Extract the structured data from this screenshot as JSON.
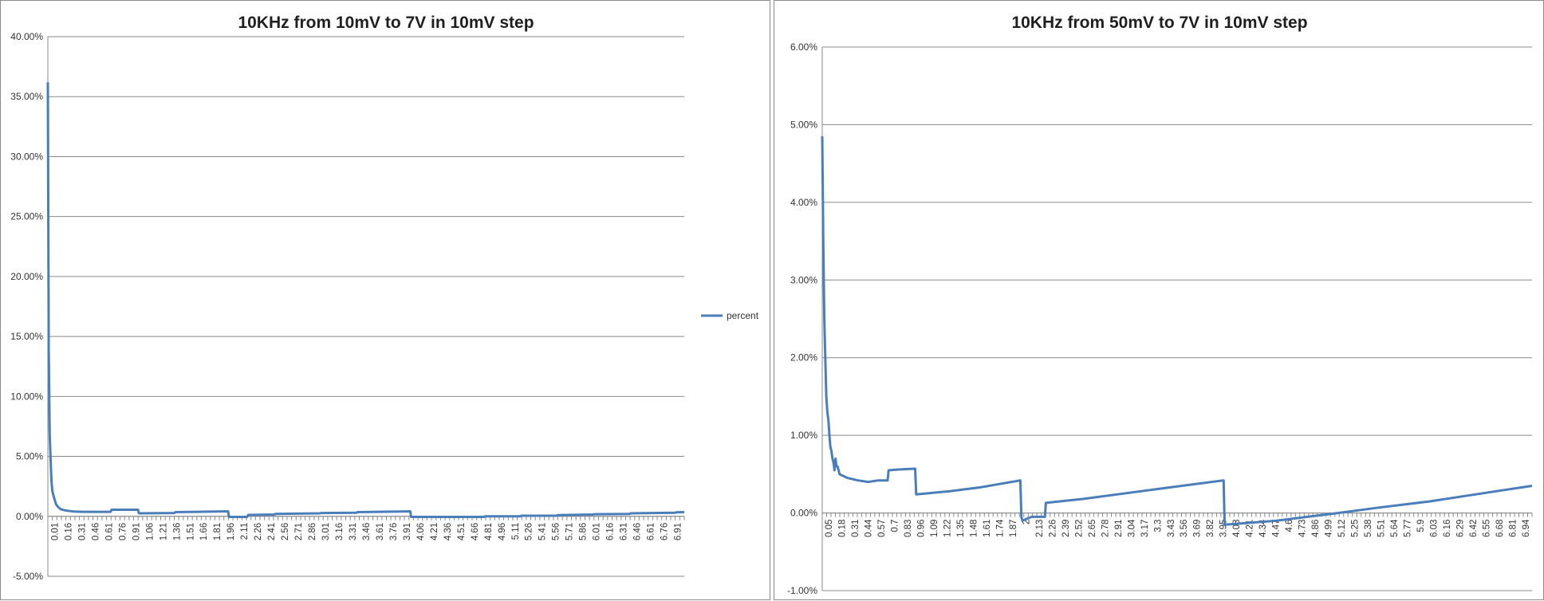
{
  "chart_data": [
    {
      "type": "line",
      "title": "10KHz from 10mV to 7V in 10mV step",
      "xlabel": "",
      "ylabel": "",
      "ylim": [
        -5.0,
        40.0
      ],
      "yticks": [
        "-5.00%",
        "0.00%",
        "5.00%",
        "10.00%",
        "15.00%",
        "20.00%",
        "25.00%",
        "30.00%",
        "35.00%",
        "40.00%"
      ],
      "ytick_values": [
        -5,
        0,
        5,
        10,
        15,
        20,
        25,
        30,
        35,
        40
      ],
      "xticks": [
        "0.01",
        "0.16",
        "0.31",
        "0.46",
        "0.61",
        "0.76",
        "0.91",
        "1.06",
        "1.21",
        "1.36",
        "1.51",
        "1.66",
        "1.81",
        "1.96",
        "2.11",
        "2.26",
        "2.41",
        "2.56",
        "2.71",
        "2.86",
        "3.01",
        "3.16",
        "3.31",
        "3.46",
        "3.61",
        "3.76",
        "3.91",
        "4.06",
        "4.21",
        "4.36",
        "4.51",
        "4.66",
        "4.81",
        "4.96",
        "5.11",
        "5.26",
        "5.41",
        "5.56",
        "5.71",
        "5.86",
        "6.01",
        "6.16",
        "6.31",
        "6.46",
        "6.61",
        "6.76",
        "6.91"
      ],
      "xlim": [
        0.01,
        7.0
      ],
      "grid": true,
      "legend": "right",
      "series": [
        {
          "name": "percent",
          "color": "#4a7ebb",
          "x": [
            0.01,
            0.02,
            0.03,
            0.04,
            0.05,
            0.06,
            0.08,
            0.1,
            0.12,
            0.15,
            0.2,
            0.3,
            0.4,
            0.7,
            0.71,
            1.0,
            1.01,
            1.4,
            1.41,
            1.99,
            2.0,
            2.2,
            2.21,
            2.5,
            2.51,
            3.0,
            3.01,
            3.4,
            3.41,
            3.99,
            4.0,
            4.8,
            4.81,
            5.2,
            5.21,
            5.6,
            5.61,
            6.0,
            6.01,
            6.4,
            6.41,
            6.9,
            6.91,
            7.0
          ],
          "values": [
            36.2,
            14.0,
            6.9,
            4.8,
            2.9,
            2.1,
            1.5,
            1.0,
            0.8,
            0.6,
            0.5,
            0.4,
            0.38,
            0.38,
            0.55,
            0.55,
            0.25,
            0.28,
            0.35,
            0.42,
            -0.05,
            -0.05,
            0.12,
            0.15,
            0.2,
            0.25,
            0.28,
            0.3,
            0.35,
            0.42,
            -0.05,
            -0.05,
            0.0,
            0.0,
            0.05,
            0.05,
            0.1,
            0.15,
            0.18,
            0.2,
            0.25,
            0.3,
            0.33,
            0.35
          ]
        }
      ]
    },
    {
      "type": "line",
      "title": "10KHz from 50mV to 7V in 10mV step",
      "xlabel": "",
      "ylabel": "",
      "ylim": [
        -1.0,
        6.0
      ],
      "yticks": [
        "-1.00%",
        "0.00%",
        "1.00%",
        "2.00%",
        "3.00%",
        "4.00%",
        "5.00%",
        "6.00%"
      ],
      "ytick_values": [
        -1,
        0,
        1,
        2,
        3,
        4,
        5,
        6
      ],
      "xticks": [
        "0.05",
        "0.18",
        "0.31",
        "0.44",
        "0.57",
        "0.7",
        "0.83",
        "0.96",
        "1.09",
        "1.22",
        "1.35",
        "1.48",
        "1.61",
        "1.74",
        "1.87",
        "2",
        "2.13",
        "2.26",
        "2.39",
        "2.52",
        "2.65",
        "2.78",
        "2.91",
        "3.04",
        "3.17",
        "3.3",
        "3.43",
        "3.56",
        "3.69",
        "3.82",
        "3.95",
        "4.08",
        "4.21",
        "4.34",
        "4.47",
        "4.6",
        "4.73",
        "4.86",
        "4.99",
        "5.12",
        "5.25",
        "5.38",
        "5.51",
        "5.64",
        "5.77",
        "5.9",
        "6.03",
        "6.16",
        "6.29",
        "6.42",
        "6.55",
        "6.68",
        "6.81",
        "6.94"
      ],
      "xlim": [
        0.05,
        7.0
      ],
      "grid": true,
      "legend": "none",
      "series": [
        {
          "name": "",
          "color": "#4a7ebb",
          "x": [
            0.05,
            0.06,
            0.07,
            0.08,
            0.09,
            0.1,
            0.11,
            0.12,
            0.13,
            0.14,
            0.15,
            0.16,
            0.17,
            0.18,
            0.19,
            0.2,
            0.21,
            0.22,
            0.25,
            0.3,
            0.4,
            0.5,
            0.6,
            0.69,
            0.7,
            0.8,
            0.96,
            0.97,
            1.3,
            1.6,
            1.99,
            2.0,
            2.01,
            2.1,
            2.23,
            2.24,
            2.6,
            3.0,
            3.4,
            3.98,
            3.99,
            4.2,
            4.5,
            4.8,
            5.1,
            5.5,
            6.0,
            6.5,
            7.0
          ],
          "values": [
            4.85,
            3.5,
            2.5,
            2.0,
            1.5,
            1.3,
            1.2,
            1.0,
            0.85,
            0.8,
            0.7,
            0.65,
            0.55,
            0.7,
            0.6,
            0.6,
            0.55,
            0.5,
            0.48,
            0.45,
            0.42,
            0.4,
            0.42,
            0.42,
            0.55,
            0.56,
            0.57,
            0.24,
            0.28,
            0.33,
            0.42,
            -0.05,
            -0.1,
            -0.05,
            -0.05,
            0.13,
            0.18,
            0.25,
            0.32,
            0.42,
            -0.15,
            -0.13,
            -0.1,
            -0.05,
            0.0,
            0.07,
            0.15,
            0.25,
            0.35
          ]
        }
      ]
    }
  ]
}
